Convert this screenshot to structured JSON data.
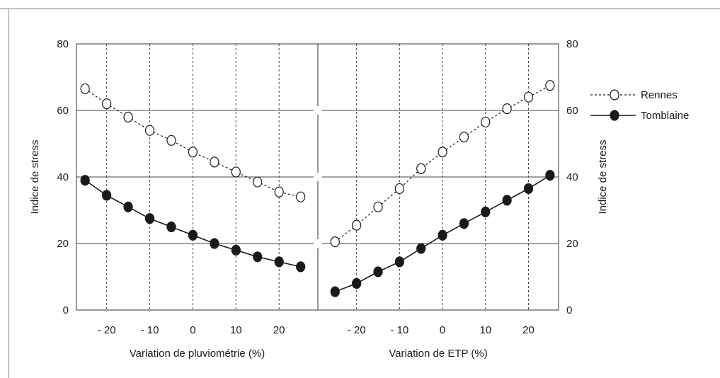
{
  "chart_data": {
    "type": "line",
    "panels": [
      {
        "xlabel": "Variation de pluviométrie (%)",
        "x": [
          -25,
          -20,
          -15,
          -10,
          -5,
          0,
          5,
          10,
          15,
          20,
          25
        ],
        "xticks": [
          -20,
          -10,
          0,
          10,
          20
        ],
        "xtick_labels": [
          "- 20",
          "- 10",
          "0",
          "10",
          "20"
        ],
        "xlim": [
          -27,
          29
        ],
        "series": [
          {
            "name": "Rennes",
            "values": [
              66.5,
              62,
              58,
              54,
              51,
              47.5,
              44.5,
              41.5,
              38.5,
              35.5,
              34
            ]
          },
          {
            "name": "Tomblaine",
            "values": [
              39,
              34.5,
              31,
              27.5,
              25,
              22.5,
              20,
              18,
              16,
              14.5,
              13
            ]
          }
        ]
      },
      {
        "xlabel": "Variation de ETP (%)",
        "x": [
          -25,
          -20,
          -15,
          -10,
          -5,
          0,
          5,
          10,
          15,
          20,
          25
        ],
        "xticks": [
          -20,
          -10,
          0,
          10,
          20
        ],
        "xtick_labels": [
          "- 20",
          "- 10",
          "0",
          "10",
          "20"
        ],
        "xlim": [
          -29,
          27
        ],
        "series": [
          {
            "name": "Rennes",
            "values": [
              20.5,
              25.5,
              31,
              36.5,
              42.5,
              47.5,
              52,
              56.5,
              60.5,
              64,
              67.5
            ]
          },
          {
            "name": "Tomblaine",
            "values": [
              5.5,
              8,
              11.5,
              14.5,
              18.5,
              22.5,
              26,
              29.5,
              33,
              36.5,
              40.5
            ]
          }
        ]
      }
    ],
    "ylabel_left": "Indice de stress",
    "ylabel_right": "Indice de stress",
    "ylim": [
      0,
      80
    ],
    "yticks": [
      0,
      20,
      40,
      60,
      80
    ],
    "grid": {
      "horizontal": true,
      "vertical_dashed": true
    },
    "legend": {
      "placement": "right",
      "entries": [
        {
          "name": "Rennes",
          "line": "dashed",
          "marker": "open-circle"
        },
        {
          "name": "Tomblaine",
          "line": "solid",
          "marker": "filled-circle"
        }
      ]
    },
    "colors": {
      "axis": "#333333",
      "grid": "#444444",
      "marker_fill_dark": "#1a1a1a",
      "marker_fill_light": "#ffffff"
    }
  }
}
